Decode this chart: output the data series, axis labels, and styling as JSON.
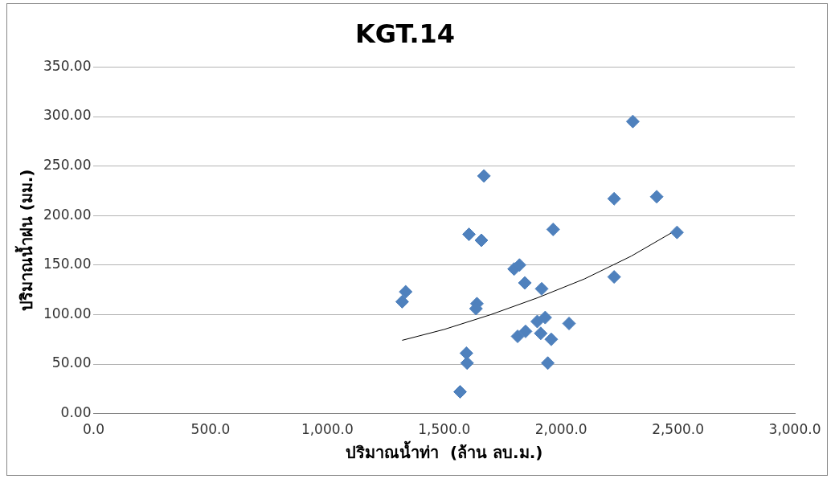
{
  "chart_data": {
    "type": "scatter",
    "title": "KGT.14",
    "xlabel": "ปริมาณน้ำท่า  (ล้าน ลบ.ม.)",
    "ylabel": "ปริมาณน้ำฝน (มม.)",
    "xlim": [
      0,
      3000
    ],
    "ylim": [
      0,
      350
    ],
    "xticks": [
      {
        "value": 0,
        "label": "0.0"
      },
      {
        "value": 500,
        "label": "500.0"
      },
      {
        "value": 1000,
        "label": "1,000.0"
      },
      {
        "value": 1500,
        "label": "1,500.0"
      },
      {
        "value": 2000,
        "label": "2,000.0"
      },
      {
        "value": 2500,
        "label": "2,500.0"
      },
      {
        "value": 3000,
        "label": "3,000.0"
      }
    ],
    "yticks": [
      {
        "value": 0,
        "label": "0.00"
      },
      {
        "value": 50,
        "label": "50.00"
      },
      {
        "value": 100,
        "label": "100.00"
      },
      {
        "value": 150,
        "label": "150.00"
      },
      {
        "value": 200,
        "label": "200.00"
      },
      {
        "value": 250,
        "label": "250.00"
      },
      {
        "value": 300,
        "label": "300.00"
      },
      {
        "value": 350,
        "label": "350.00"
      }
    ],
    "grid": "y",
    "legend": false,
    "marker": "diamond",
    "series": [
      {
        "color": "#4f81bd",
        "x": [
          1320,
          1335,
          1568,
          1598,
          1595,
          1606,
          1659,
          1640,
          1636,
          1670,
          1799,
          1822,
          1845,
          1814,
          1848,
          1898,
          1932,
          1917,
          1913,
          1958,
          1943,
          1966,
          2034,
          2227,
          2227,
          2307,
          2409,
          2496
        ],
        "values": [
          113,
          123,
          22,
          51,
          61,
          181,
          175,
          111,
          106,
          240,
          146,
          150,
          132,
          78,
          83,
          93,
          97,
          126,
          81,
          75,
          51,
          186,
          91,
          217,
          138,
          295,
          219,
          183
        ]
      },
      {
        "type": "line",
        "color": "#000000",
        "marker": "none",
        "x": [
          1320,
          1500,
          1700,
          1900,
          2100,
          2300,
          2490
        ],
        "values": [
          74,
          85,
          100,
          117,
          136,
          159,
          185
        ]
      }
    ]
  }
}
